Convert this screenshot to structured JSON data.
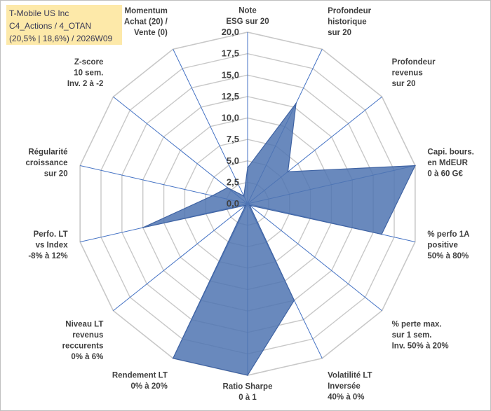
{
  "title_box": {
    "line1": "T-Mobile US Inc",
    "line2": "C4_Actions / 4_OTAN",
    "line3": "(20,5% | 18,6%) / 2026W09"
  },
  "chart_data": {
    "type": "radar",
    "title": "T-Mobile US Inc",
    "rmin": 0,
    "rmax": 20,
    "rstep": 2.5,
    "tick_labels": [
      "0,0",
      "2,5",
      "5,0",
      "7,5",
      "10,0",
      "12,5",
      "15,0",
      "17,5",
      "20,0"
    ],
    "axes": [
      {
        "label": "Note\nESG sur 20",
        "value": 4.2
      },
      {
        "label": "Profondeur\nhistorique\nsur 20",
        "value": 13.0
      },
      {
        "label": "Profondeur\nrevenus\nsur 20",
        "value": 6.0
      },
      {
        "label": "Capi. bours.\nen MdEUR\n0 à 60 G€",
        "value": 20.0
      },
      {
        "label": "% perfo 1A\npositive\n50% à 80%",
        "value": 16.0
      },
      {
        "label": "% perte max.\nsur 1 sem.\nInv. 50% à 20%",
        "value": 0.3
      },
      {
        "label": "Volatilité LT\nInversée\n40% à 0%",
        "value": 12.5
      },
      {
        "label": "Ratio Sharpe\n0 à 1",
        "value": 20.0
      },
      {
        "label": "Rendement LT\n0% à 20%",
        "value": 20.0
      },
      {
        "label": "Niveau LT\nrevenus\nreccurents\n0% à 6%",
        "value": 0.3
      },
      {
        "label": "Perfo. LT\nvs Index\n-8% à 12%",
        "value": 12.5
      },
      {
        "label": "Régularité\ncroissance\nsur 20",
        "value": 4.2
      },
      {
        "label": "Z-score\n10 sem.\nInv. 2 à -2",
        "value": 3.0
      },
      {
        "label": "Momentum\nAchat (20) /\nVente (0)",
        "value": 1.0
      }
    ],
    "series_color": "#4f74b1",
    "fill_opacity": 0.85,
    "grid_color": "#c8c8c8",
    "axis_color": "#4472c4",
    "label_color": "#404040"
  }
}
